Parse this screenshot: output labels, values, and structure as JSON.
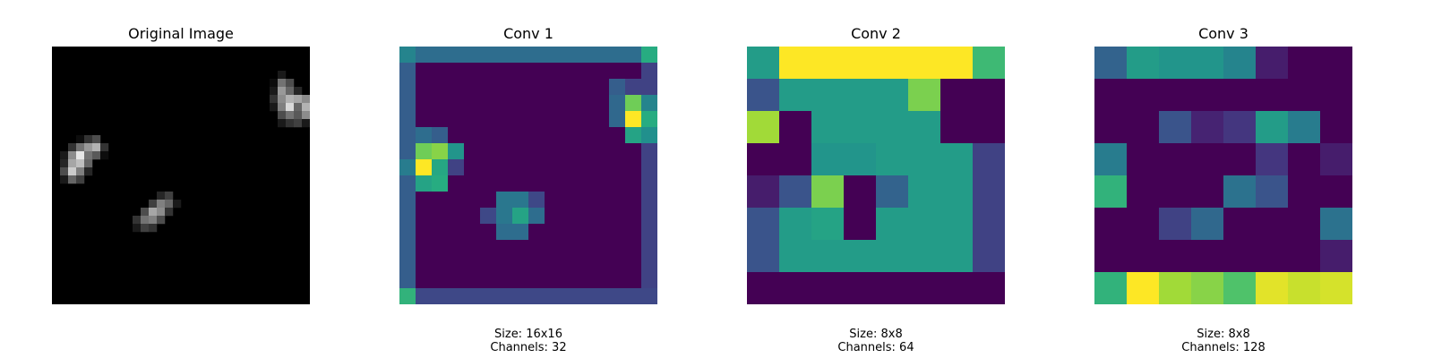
{
  "chart_data": [
    {
      "type": "heatmap",
      "title": "Original Image",
      "colormap": "gray",
      "grid": false,
      "rows": 32,
      "cols": 32,
      "blobs": [
        {
          "row": 3,
          "col": 27,
          "values": [
            [
              0.0,
              0.1,
              0.0,
              0.0,
              0.0,
              0.0
            ],
            [
              0.05,
              0.45,
              0.3,
              0.0,
              0.0,
              0.0
            ],
            [
              0.1,
              0.6,
              0.4,
              0.15,
              0.0,
              0.0
            ],
            [
              0.2,
              0.55,
              0.7,
              0.65,
              0.55,
              0.1
            ],
            [
              0.1,
              0.5,
              0.85,
              0.4,
              0.7,
              0.3
            ],
            [
              0.0,
              0.3,
              0.45,
              0.35,
              0.55,
              0.15
            ],
            [
              0.0,
              0.1,
              0.2,
              0.25,
              0.1,
              0.0
            ]
          ]
        },
        {
          "row": 11,
          "col": 1,
          "values": [
            [
              0.0,
              0.0,
              0.05,
              0.2,
              0.3,
              0.0
            ],
            [
              0.0,
              0.2,
              0.45,
              0.6,
              0.7,
              0.2
            ],
            [
              0.1,
              0.55,
              0.9,
              0.45,
              0.35,
              0.05
            ],
            [
              0.15,
              0.65,
              0.75,
              0.4,
              0.0,
              0.0
            ],
            [
              0.3,
              0.8,
              0.5,
              0.15,
              0.0,
              0.0
            ],
            [
              0.1,
              0.4,
              0.25,
              0.0,
              0.0,
              0.0
            ]
          ]
        },
        {
          "row": 18,
          "col": 10,
          "values": [
            [
              0.0,
              0.0,
              0.0,
              0.15,
              0.25,
              0.0
            ],
            [
              0.0,
              0.0,
              0.25,
              0.5,
              0.4,
              0.1
            ],
            [
              0.0,
              0.3,
              0.65,
              0.55,
              0.2,
              0.0
            ],
            [
              0.2,
              0.45,
              0.5,
              0.3,
              0.0,
              0.0
            ],
            [
              0.1,
              0.25,
              0.2,
              0.0,
              0.0,
              0.0
            ]
          ]
        }
      ]
    },
    {
      "type": "heatmap",
      "title": "Conv 1",
      "colormap": "viridis",
      "grid": false,
      "caption": [
        "Size: 16x16",
        "Channels: 32"
      ],
      "values": [
        [
          0.45,
          0.36,
          0.36,
          0.36,
          0.36,
          0.36,
          0.36,
          0.36,
          0.36,
          0.36,
          0.36,
          0.36,
          0.36,
          0.36,
          0.36,
          0.62
        ],
        [
          0.3,
          0.0,
          0.0,
          0.0,
          0.0,
          0.0,
          0.0,
          0.0,
          0.0,
          0.0,
          0.0,
          0.0,
          0.0,
          0.0,
          0.0,
          0.2
        ],
        [
          0.3,
          0.0,
          0.0,
          0.0,
          0.0,
          0.0,
          0.0,
          0.0,
          0.0,
          0.0,
          0.0,
          0.0,
          0.0,
          0.3,
          0.2,
          0.2
        ],
        [
          0.3,
          0.0,
          0.0,
          0.0,
          0.0,
          0.0,
          0.0,
          0.0,
          0.0,
          0.0,
          0.0,
          0.0,
          0.0,
          0.34,
          0.78,
          0.45
        ],
        [
          0.3,
          0.0,
          0.0,
          0.0,
          0.0,
          0.0,
          0.0,
          0.0,
          0.0,
          0.0,
          0.0,
          0.0,
          0.0,
          0.34,
          1.0,
          0.62
        ],
        [
          0.3,
          0.36,
          0.3,
          0.0,
          0.0,
          0.0,
          0.0,
          0.0,
          0.0,
          0.0,
          0.0,
          0.0,
          0.0,
          0.0,
          0.58,
          0.5
        ],
        [
          0.3,
          0.78,
          0.82,
          0.52,
          0.0,
          0.0,
          0.0,
          0.0,
          0.0,
          0.0,
          0.0,
          0.0,
          0.0,
          0.0,
          0.0,
          0.2
        ],
        [
          0.42,
          1.0,
          0.6,
          0.2,
          0.0,
          0.0,
          0.0,
          0.0,
          0.0,
          0.0,
          0.0,
          0.0,
          0.0,
          0.0,
          0.0,
          0.2
        ],
        [
          0.3,
          0.58,
          0.62,
          0.0,
          0.0,
          0.0,
          0.0,
          0.0,
          0.0,
          0.0,
          0.0,
          0.0,
          0.0,
          0.0,
          0.0,
          0.2
        ],
        [
          0.3,
          0.0,
          0.0,
          0.0,
          0.0,
          0.0,
          0.4,
          0.4,
          0.22,
          0.0,
          0.0,
          0.0,
          0.0,
          0.0,
          0.0,
          0.2
        ],
        [
          0.3,
          0.0,
          0.0,
          0.0,
          0.0,
          0.22,
          0.4,
          0.58,
          0.36,
          0.0,
          0.0,
          0.0,
          0.0,
          0.0,
          0.0,
          0.2
        ],
        [
          0.3,
          0.0,
          0.0,
          0.0,
          0.0,
          0.0,
          0.36,
          0.36,
          0.0,
          0.0,
          0.0,
          0.0,
          0.0,
          0.0,
          0.0,
          0.2
        ],
        [
          0.3,
          0.0,
          0.0,
          0.0,
          0.0,
          0.0,
          0.0,
          0.0,
          0.0,
          0.0,
          0.0,
          0.0,
          0.0,
          0.0,
          0.0,
          0.2
        ],
        [
          0.3,
          0.0,
          0.0,
          0.0,
          0.0,
          0.0,
          0.0,
          0.0,
          0.0,
          0.0,
          0.0,
          0.0,
          0.0,
          0.0,
          0.0,
          0.2
        ],
        [
          0.3,
          0.0,
          0.0,
          0.0,
          0.0,
          0.0,
          0.0,
          0.0,
          0.0,
          0.0,
          0.0,
          0.0,
          0.0,
          0.0,
          0.0,
          0.2
        ],
        [
          0.65,
          0.22,
          0.22,
          0.22,
          0.22,
          0.22,
          0.22,
          0.22,
          0.22,
          0.22,
          0.22,
          0.22,
          0.22,
          0.22,
          0.22,
          0.22
        ]
      ]
    },
    {
      "type": "heatmap",
      "title": "Conv 2",
      "colormap": "viridis",
      "grid": false,
      "caption": [
        "Size: 8x8",
        "Channels: 64"
      ],
      "values": [
        [
          0.55,
          1.0,
          1.0,
          1.0,
          1.0,
          1.0,
          1.0,
          0.68
        ],
        [
          0.26,
          0.55,
          0.55,
          0.55,
          0.55,
          0.8,
          0.0,
          0.0
        ],
        [
          0.86,
          0.0,
          0.55,
          0.55,
          0.55,
          0.55,
          0.0,
          0.0
        ],
        [
          0.0,
          0.0,
          0.52,
          0.52,
          0.55,
          0.55,
          0.55,
          0.2
        ],
        [
          0.08,
          0.26,
          0.8,
          0.0,
          0.32,
          0.55,
          0.55,
          0.2
        ],
        [
          0.26,
          0.55,
          0.58,
          0.0,
          0.55,
          0.55,
          0.55,
          0.2
        ],
        [
          0.26,
          0.55,
          0.55,
          0.55,
          0.55,
          0.55,
          0.55,
          0.2
        ],
        [
          0.0,
          0.0,
          0.0,
          0.0,
          0.0,
          0.0,
          0.0,
          0.0
        ]
      ]
    },
    {
      "type": "heatmap",
      "title": "Conv 3",
      "colormap": "viridis",
      "grid": false,
      "caption": [
        "Size: 8x8",
        "Channels: 128"
      ],
      "values": [
        [
          0.32,
          0.55,
          0.52,
          0.52,
          0.45,
          0.08,
          0.0,
          0.0
        ],
        [
          0.0,
          0.0,
          0.0,
          0.0,
          0.0,
          0.0,
          0.0,
          0.0
        ],
        [
          0.0,
          0.0,
          0.26,
          0.1,
          0.16,
          0.55,
          0.42,
          0.0
        ],
        [
          0.42,
          0.0,
          0.0,
          0.0,
          0.0,
          0.16,
          0.0,
          0.08
        ],
        [
          0.65,
          0.0,
          0.0,
          0.0,
          0.38,
          0.26,
          0.0,
          0.0
        ],
        [
          0.0,
          0.0,
          0.2,
          0.34,
          0.0,
          0.0,
          0.0,
          0.38
        ],
        [
          0.0,
          0.0,
          0.0,
          0.0,
          0.0,
          0.0,
          0.0,
          0.08
        ],
        [
          0.65,
          1.0,
          0.86,
          0.82,
          0.72,
          0.96,
          0.92,
          0.94
        ]
      ]
    }
  ]
}
